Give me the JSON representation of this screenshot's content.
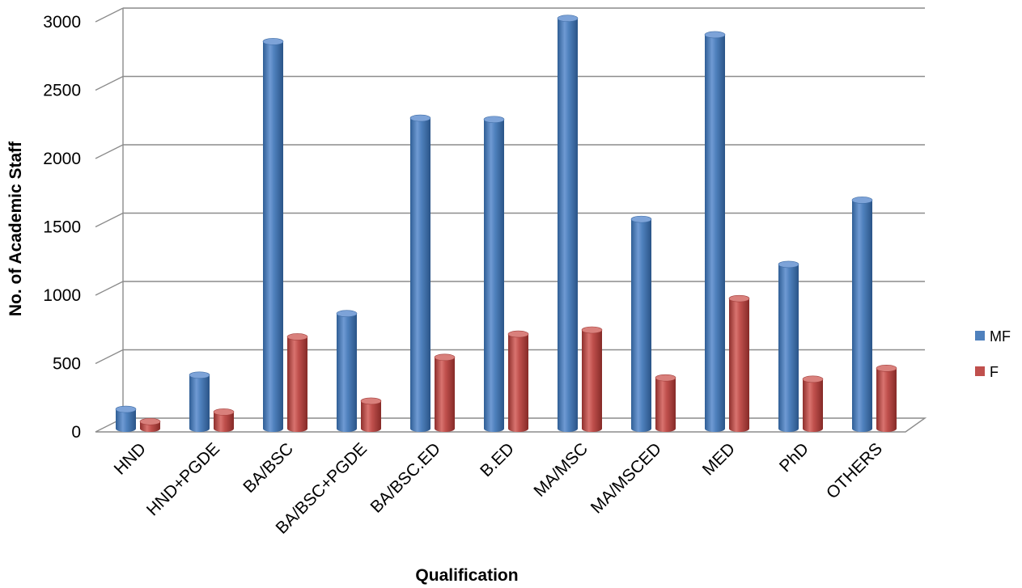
{
  "chart_data": {
    "type": "bar",
    "title": "",
    "xlabel": "Qualification",
    "ylabel": "No. of Academic Staff",
    "ylim": [
      0,
      3000
    ],
    "yticks": [
      0,
      500,
      1000,
      1500,
      2000,
      2500,
      3000
    ],
    "grid": true,
    "style": "3d-cylinder",
    "legend_position": "right",
    "categories": [
      "HND",
      "HND+PGDE",
      "BA/BSC",
      "BA/BSC+PGDE",
      "BA/BSC.ED",
      "B.ED",
      "MA/MSC",
      "MA/MSCED",
      "MED",
      "PhD",
      "OTHERS"
    ],
    "series": [
      {
        "name": "MF",
        "color": "#4F81BD",
        "values": [
          130,
          380,
          2820,
          830,
          2260,
          2250,
          2990,
          1520,
          2870,
          1190,
          1660
        ]
      },
      {
        "name": "F",
        "color": "#C0504D",
        "values": [
          40,
          110,
          660,
          190,
          510,
          680,
          710,
          360,
          940,
          350,
          430
        ]
      }
    ]
  }
}
